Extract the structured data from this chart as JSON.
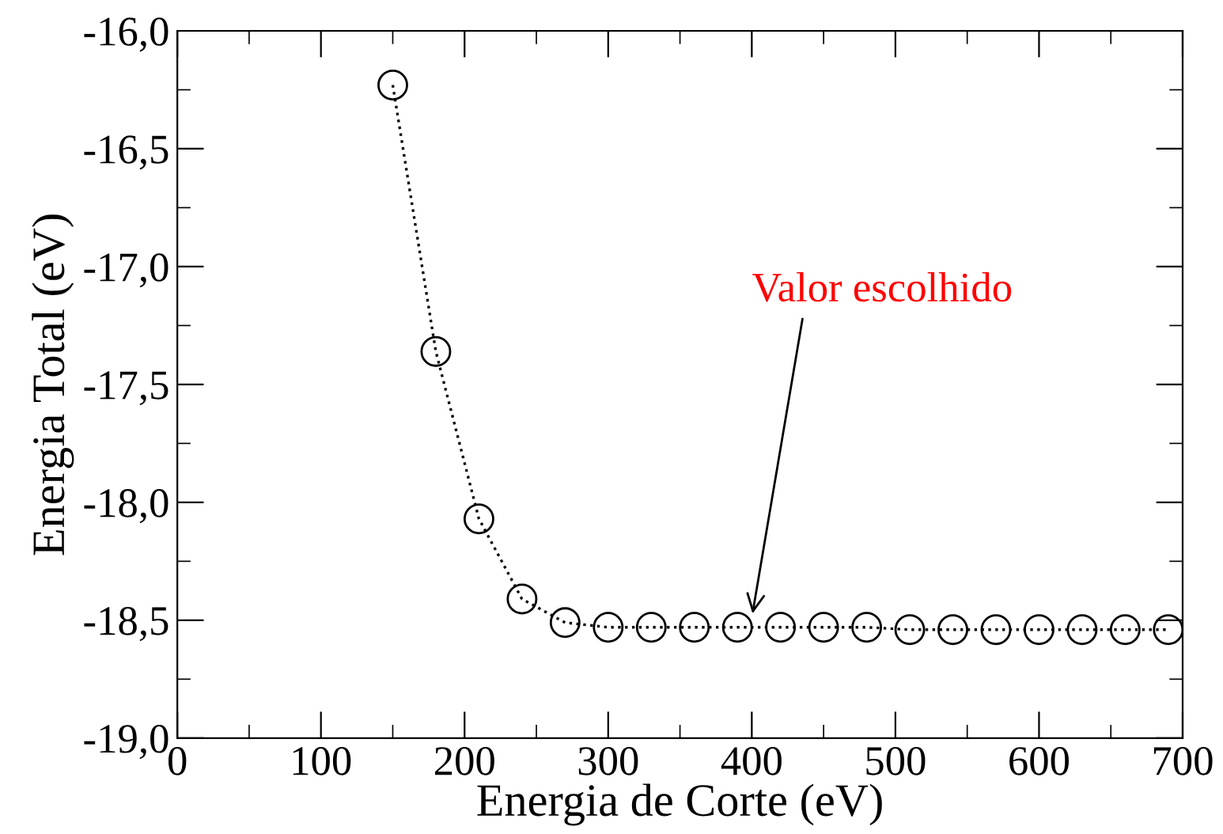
{
  "chart_data": {
    "type": "line",
    "xlabel": "Energia de Corte (eV)",
    "ylabel": "Energia Total (eV)",
    "x": [
      150,
      180,
      210,
      240,
      270,
      300,
      330,
      360,
      390,
      420,
      450,
      480,
      510,
      540,
      570,
      600,
      630,
      660,
      690
    ],
    "series": [
      {
        "color": "#000000",
        "values": [
          -16.23,
          -17.36,
          -18.07,
          -18.41,
          -18.51,
          -18.53,
          -18.53,
          -18.53,
          -18.53,
          -18.53,
          -18.53,
          -18.53,
          -18.54,
          -18.54,
          -18.54,
          -18.54,
          -18.54,
          -18.54,
          -18.54
        ]
      }
    ],
    "marker": "circle",
    "line_style": "dotted",
    "grid": false,
    "legend": false,
    "xlim": [
      0,
      700
    ],
    "xticks": [
      0,
      100,
      200,
      300,
      400,
      500,
      600,
      700
    ],
    "ylim": [
      -19.0,
      -16.0
    ],
    "yticks": [
      {
        "value": -19.0,
        "label": "-19,0"
      },
      {
        "value": -18.5,
        "label": "-18,5"
      },
      {
        "value": -18.0,
        "label": "-18,0"
      },
      {
        "value": -17.5,
        "label": "-17,5"
      },
      {
        "value": -17.0,
        "label": "-17,0"
      },
      {
        "value": -16.5,
        "label": "-16,5"
      },
      {
        "value": -16.0,
        "label": "-16,0"
      }
    ],
    "annotations": [
      {
        "text": "Valor escolhido",
        "x": 400,
        "y": -18.49
      }
    ]
  }
}
